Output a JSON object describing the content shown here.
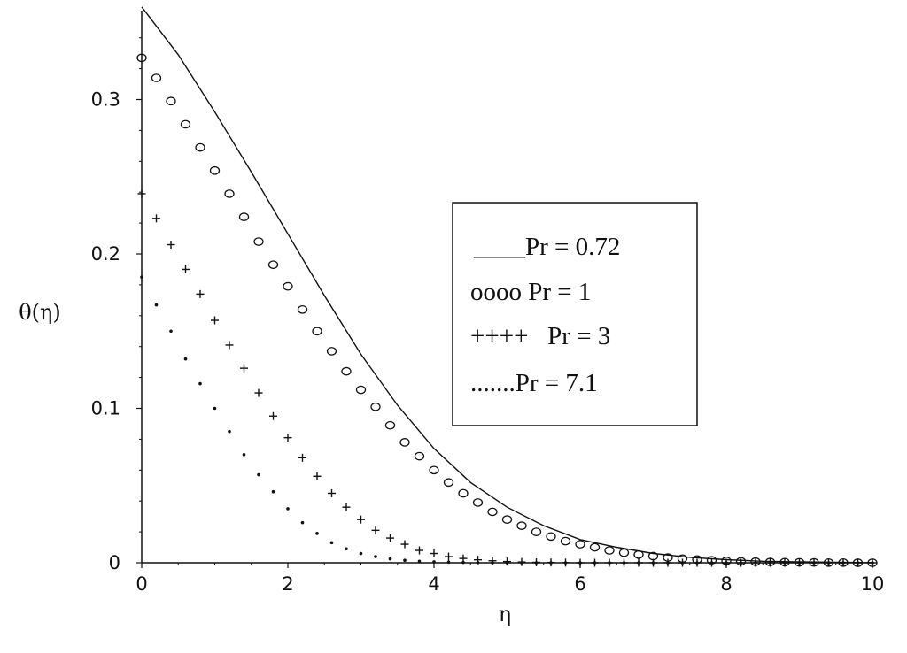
{
  "chart_data": {
    "type": "line",
    "title": "",
    "xlabel": "η",
    "ylabel": "θ(η)",
    "xlim": [
      0,
      10
    ],
    "ylim": [
      0,
      0.36
    ],
    "x_ticks": [
      "0",
      "2",
      "4",
      "6",
      "8",
      "10"
    ],
    "y_ticks": [
      "0",
      "0.1",
      "0.2",
      "0.3"
    ],
    "grid": false,
    "legend_position": "center-right",
    "legend": [
      "____Pr = 0.72",
      "oooo Pr = 1",
      "++++   Pr = 3",
      ".......Pr = 7.1"
    ],
    "series": [
      {
        "name": "Pr = 0.72",
        "style": "solid-line",
        "x": [
          0,
          0.5,
          1,
          1.5,
          2,
          2.5,
          3,
          3.5,
          4,
          4.5,
          5,
          5.5,
          6,
          6.5,
          7,
          7.5,
          8,
          8.5,
          9,
          9.5,
          10
        ],
        "y": [
          0.36,
          0.329,
          0.292,
          0.253,
          0.213,
          0.173,
          0.135,
          0.102,
          0.074,
          0.052,
          0.036,
          0.024,
          0.015,
          0.01,
          0.006,
          0.0035,
          0.002,
          0.001,
          0.0006,
          0.0003,
          0.0001
        ]
      },
      {
        "name": "Pr = 1",
        "style": "circles",
        "x": [
          0,
          0.2,
          0.4,
          0.6,
          0.8,
          1.0,
          1.2,
          1.4,
          1.6,
          1.8,
          2.0,
          2.2,
          2.4,
          2.6,
          2.8,
          3.0,
          3.2,
          3.4,
          3.6,
          3.8,
          4.0,
          4.2,
          4.4,
          4.6,
          4.8,
          5.0,
          5.2,
          5.4,
          5.6,
          5.8,
          6.0,
          6.2,
          6.4,
          6.6,
          6.8,
          7.0,
          7.2,
          7.4,
          7.6,
          7.8,
          8.0,
          8.2,
          8.4,
          8.6,
          8.8,
          9.0,
          9.2,
          9.4,
          9.6,
          9.8,
          10.0
        ],
        "y": [
          0.327,
          0.314,
          0.299,
          0.284,
          0.269,
          0.254,
          0.239,
          0.224,
          0.208,
          0.193,
          0.179,
          0.164,
          0.15,
          0.137,
          0.124,
          0.112,
          0.101,
          0.089,
          0.078,
          0.069,
          0.06,
          0.052,
          0.045,
          0.039,
          0.033,
          0.028,
          0.024,
          0.02,
          0.017,
          0.014,
          0.012,
          0.01,
          0.008,
          0.0065,
          0.0053,
          0.0043,
          0.0034,
          0.0027,
          0.0021,
          0.0016,
          0.0012,
          0.0009,
          0.0007,
          0.0005,
          0.0004,
          0.0003,
          0.0002,
          0.0001,
          0.0001,
          0.0,
          0.0
        ]
      },
      {
        "name": "Pr = 3",
        "style": "plus",
        "x": [
          0,
          0.2,
          0.4,
          0.6,
          0.8,
          1.0,
          1.2,
          1.4,
          1.6,
          1.8,
          2.0,
          2.2,
          2.4,
          2.6,
          2.8,
          3.0,
          3.2,
          3.4,
          3.6,
          3.8,
          4.0,
          4.2,
          4.4,
          4.6,
          4.8,
          5.0,
          5.2,
          5.4,
          5.6,
          5.8,
          6.0,
          6.2,
          6.4,
          6.6,
          6.8,
          7.0,
          7.2,
          7.4,
          7.6,
          7.8,
          8.0,
          8.2,
          8.4,
          8.6,
          8.8,
          9.0,
          9.2,
          9.4,
          9.6,
          9.8,
          10.0
        ],
        "y": [
          0.239,
          0.223,
          0.206,
          0.19,
          0.174,
          0.157,
          0.141,
          0.126,
          0.11,
          0.095,
          0.081,
          0.068,
          0.056,
          0.045,
          0.036,
          0.028,
          0.021,
          0.016,
          0.012,
          0.008,
          0.006,
          0.004,
          0.0028,
          0.0019,
          0.0013,
          0.0008,
          0.0005,
          0.0003,
          0.0002,
          0.0001,
          0.0,
          0.0,
          0.0,
          0.0,
          0.0,
          0.0,
          0.0,
          0.0,
          0.0,
          0.0,
          0.0,
          0.0,
          0.0,
          0.0,
          0.0,
          0.0,
          0.0,
          0.0,
          0.0,
          0.0,
          0.0
        ]
      },
      {
        "name": "Pr = 7.1",
        "style": "dots",
        "x": [
          0,
          0.2,
          0.4,
          0.6,
          0.8,
          1.0,
          1.2,
          1.4,
          1.6,
          1.8,
          2.0,
          2.2,
          2.4,
          2.6,
          2.8,
          3.0,
          3.2,
          3.4,
          3.6,
          3.8,
          4.0,
          4.2,
          4.4,
          4.6,
          4.8,
          5.0,
          5.2,
          5.4,
          5.6,
          5.8,
          6.0,
          6.2,
          6.4,
          6.6,
          6.8,
          7.0,
          7.2,
          7.4,
          7.6,
          7.8,
          8.0,
          8.2,
          8.4,
          8.6,
          8.8,
          9.0,
          9.2,
          9.4,
          9.6,
          9.8,
          10.0
        ],
        "y": [
          0.185,
          0.167,
          0.15,
          0.132,
          0.116,
          0.1,
          0.085,
          0.07,
          0.057,
          0.046,
          0.035,
          0.026,
          0.019,
          0.013,
          0.009,
          0.006,
          0.004,
          0.0025,
          0.0016,
          0.001,
          0.0006,
          0.0004,
          0.0002,
          0.0001,
          0.0,
          0.0,
          0.0,
          0.0,
          0.0,
          0.0,
          0.0,
          0.0,
          0.0,
          0.0,
          0.0,
          0.0,
          0.0,
          0.0,
          0.0,
          0.0,
          0.0,
          0.0,
          0.0,
          0.0,
          0.0,
          0.0,
          0.0,
          0.0,
          0.0,
          0.0,
          0.0
        ]
      }
    ]
  }
}
